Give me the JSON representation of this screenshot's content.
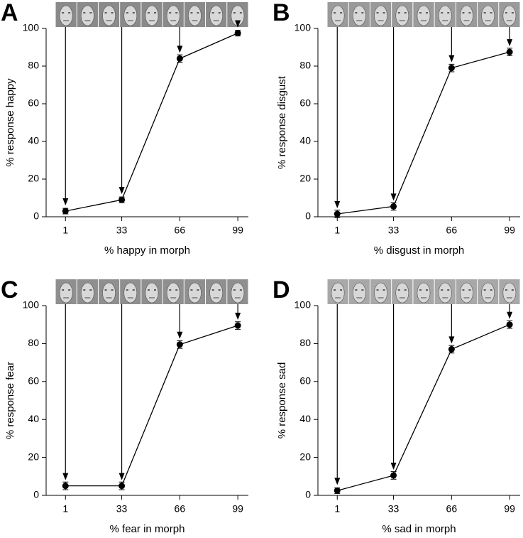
{
  "chart_data": [
    {
      "type": "line",
      "panel_label": "A",
      "ylabel": "% response happy",
      "xlabel": "% happy in morph",
      "x": [
        1,
        33,
        66,
        99
      ],
      "values": [
        3,
        9,
        84,
        97.5
      ],
      "errors": [
        1.5,
        1.5,
        2,
        1.5
      ],
      "color": "#000000",
      "xlim": [
        -10,
        105
      ],
      "xticks": [
        1,
        33,
        66,
        99
      ],
      "ylim": [
        0,
        100
      ],
      "yticks": [
        0,
        20,
        40,
        60,
        80,
        100
      ]
    },
    {
      "type": "line",
      "panel_label": "B",
      "ylabel": "% response disgust",
      "xlabel": "% disgust in morph",
      "x": [
        1,
        33,
        66,
        99
      ],
      "values": [
        1.5,
        5.5,
        79,
        87.5
      ],
      "errors": [
        2,
        2,
        2,
        2
      ],
      "color": "#000000",
      "xlim": [
        -10,
        105
      ],
      "xticks": [
        1,
        33,
        66,
        99
      ],
      "ylim": [
        0,
        100
      ],
      "yticks": [
        0,
        20,
        40,
        60,
        80,
        100
      ]
    },
    {
      "type": "line",
      "panel_label": "C",
      "ylabel": "% response fear",
      "xlabel": "% fear in morph",
      "x": [
        1,
        33,
        66,
        99
      ],
      "values": [
        5,
        5,
        79.5,
        89.5
      ],
      "errors": [
        2,
        2,
        2,
        2
      ],
      "color": "#000000",
      "xlim": [
        -10,
        105
      ],
      "xticks": [
        1,
        33,
        66,
        99
      ],
      "ylim": [
        0,
        100
      ],
      "yticks": [
        0,
        20,
        40,
        60,
        80,
        100
      ]
    },
    {
      "type": "line",
      "panel_label": "D",
      "ylabel": "% response sad",
      "xlabel": "% sad in morph",
      "x": [
        1,
        33,
        66,
        99
      ],
      "values": [
        2.5,
        10.5,
        77,
        90
      ],
      "errors": [
        1.5,
        2,
        2,
        2
      ],
      "color": "#000000",
      "xlim": [
        -10,
        105
      ],
      "xticks": [
        1,
        33,
        66,
        99
      ],
      "ylim": [
        0,
        100
      ],
      "yticks": [
        0,
        20,
        40,
        60,
        80,
        100
      ]
    }
  ]
}
